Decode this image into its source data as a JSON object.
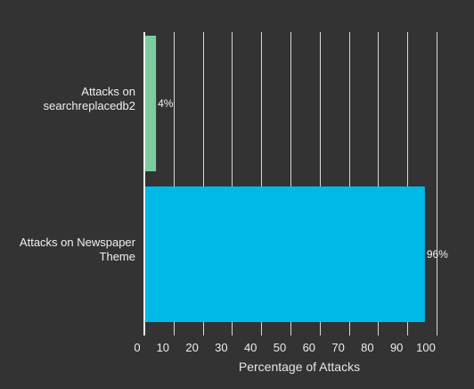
{
  "chart_data": {
    "type": "bar",
    "orientation": "horizontal",
    "categories": [
      "Attacks on searchreplacedb2",
      "Attacks on Newspaper Theme"
    ],
    "category_lines": [
      [
        "Attacks on",
        "searchreplacedb2"
      ],
      [
        "Attacks on Newspaper",
        "Theme"
      ]
    ],
    "values": [
      4,
      96
    ],
    "data_labels": [
      "4%",
      "96%"
    ],
    "colors": [
      "#7dcca0",
      "#00b9e6"
    ],
    "xlabel": "Percentage of Attacks",
    "ylabel": "",
    "xlim": [
      0,
      100
    ],
    "xticks": [
      "0",
      "10",
      "20",
      "30",
      "40",
      "50",
      "60",
      "70",
      "80",
      "90",
      "100"
    ],
    "grid": true,
    "legend": "none",
    "background": "#333333"
  }
}
